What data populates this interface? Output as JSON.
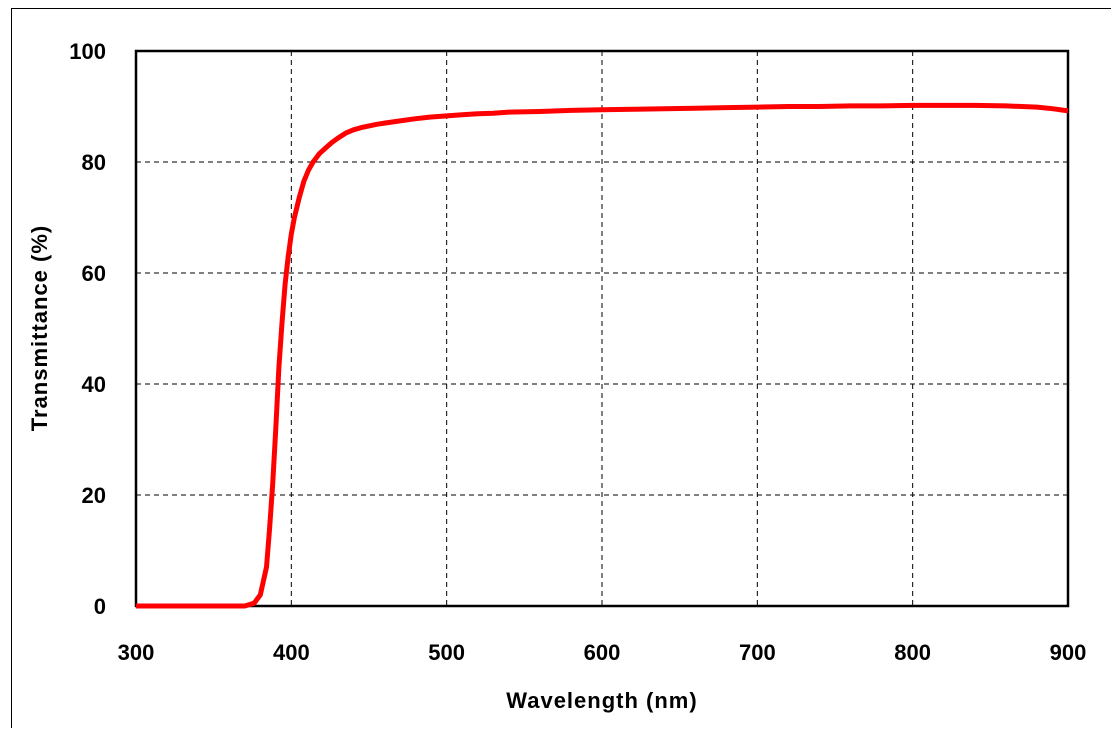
{
  "chart_data": {
    "type": "line",
    "title": "",
    "xlabel": "Wavelength (nm)",
    "ylabel": "Transmittance (%)",
    "xlim": [
      300,
      900
    ],
    "ylim": [
      0,
      100
    ],
    "xticks": [
      "300",
      "400",
      "500",
      "600",
      "700",
      "800",
      "900"
    ],
    "yticks": [
      "0",
      "20",
      "40",
      "60",
      "80",
      "100"
    ],
    "grid": true,
    "legend": "none",
    "series": [
      {
        "color": "#ff0000",
        "x": [
          300,
          370,
          376,
          380,
          384,
          386,
          388,
          390,
          392,
          394,
          396,
          398,
          400,
          402,
          405,
          408,
          411,
          414,
          418,
          422,
          426,
          430,
          435,
          440,
          445,
          450,
          455,
          460,
          470,
          480,
          490,
          500,
          510,
          520,
          530,
          540,
          560,
          580,
          600,
          620,
          640,
          660,
          680,
          700,
          720,
          740,
          760,
          780,
          800,
          820,
          840,
          860,
          880,
          890,
          900
        ],
        "y": [
          0,
          0,
          0.5,
          2,
          7,
          14,
          22,
          32,
          43,
          51,
          58,
          63,
          67,
          70,
          73.5,
          76.5,
          78.5,
          80,
          81.5,
          82.5,
          83.5,
          84.3,
          85.2,
          85.8,
          86.2,
          86.5,
          86.8,
          87,
          87.4,
          87.8,
          88.1,
          88.3,
          88.5,
          88.7,
          88.8,
          89,
          89.1,
          89.3,
          89.4,
          89.5,
          89.6,
          89.7,
          89.8,
          89.9,
          90,
          90,
          90.1,
          90.1,
          90.2,
          90.2,
          90.2,
          90.1,
          89.9,
          89.6,
          89.2
        ]
      }
    ]
  }
}
